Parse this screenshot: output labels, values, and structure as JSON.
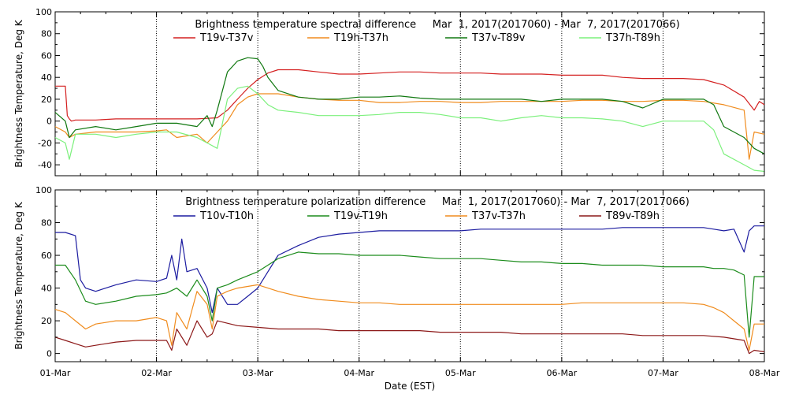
{
  "xlabel": "Date (EST)",
  "x_ticks": [
    "01-Mar",
    "02-Mar",
    "03-Mar",
    "04-Mar",
    "05-Mar",
    "06-Mar",
    "07-Mar",
    "08-Mar"
  ],
  "chart_data": [
    {
      "type": "line",
      "title": "Brightness temperature spectral difference     Mar  1, 2017(2017060) - Mar  7, 2017(2017066)",
      "xlabel": "",
      "ylabel": "Brightness Temperature, Deg K",
      "xlim": [
        0,
        7
      ],
      "ylim": [
        -50,
        100
      ],
      "yticks": [
        "-40",
        "-20",
        "0",
        "20",
        "40",
        "60",
        "80",
        "100"
      ],
      "ytick_values": [
        -40,
        -20,
        0,
        20,
        40,
        60,
        80,
        100
      ],
      "grid": "dotted vertical lines at day boundaries",
      "legend": "top",
      "series": [
        {
          "name": "T19v-T37v",
          "color": "#d42020",
          "x": [
            0,
            0.1,
            0.12,
            0.14,
            0.16,
            0.2,
            0.4,
            0.6,
            0.8,
            1,
            1.2,
            1.4,
            1.6,
            1.7,
            1.8,
            1.9,
            2,
            2.1,
            2.2,
            2.4,
            2.6,
            2.8,
            3,
            3.2,
            3.4,
            3.6,
            3.8,
            4,
            4.2,
            4.4,
            4.6,
            4.8,
            5,
            5.2,
            5.4,
            5.6,
            5.8,
            6,
            6.2,
            6.4,
            6.6,
            6.8,
            6.9,
            6.95,
            7
          ],
          "y": [
            32,
            32,
            5,
            2,
            0,
            1,
            1,
            2,
            2,
            2,
            2,
            2,
            3,
            10,
            20,
            30,
            38,
            44,
            47,
            47,
            45,
            43,
            43,
            44,
            45,
            45,
            44,
            44,
            44,
            43,
            43,
            43,
            42,
            42,
            42,
            40,
            39,
            39,
            39,
            38,
            33,
            22,
            10,
            18,
            15
          ]
        },
        {
          "name": "T19h-T37h",
          "color": "#f08c1e",
          "x": [
            0,
            0.1,
            0.14,
            0.2,
            0.4,
            0.6,
            0.8,
            1,
            1.1,
            1.2,
            1.4,
            1.5,
            1.6,
            1.7,
            1.8,
            1.9,
            2,
            2.2,
            2.4,
            2.6,
            2.8,
            3,
            3.2,
            3.4,
            3.6,
            3.8,
            4,
            4.2,
            4.4,
            4.6,
            4.8,
            5,
            5.2,
            5.4,
            5.6,
            5.8,
            6,
            6.2,
            6.4,
            6.6,
            6.8,
            6.85,
            6.9,
            7
          ],
          "y": [
            -5,
            -10,
            -15,
            -12,
            -10,
            -10,
            -10,
            -9,
            -8,
            -15,
            -12,
            -20,
            -10,
            0,
            15,
            22,
            25,
            25,
            22,
            20,
            19,
            19,
            17,
            17,
            18,
            18,
            17,
            17,
            18,
            18,
            18,
            18,
            19,
            19,
            18,
            18,
            19,
            19,
            18,
            15,
            10,
            -35,
            -10,
            -12
          ]
        },
        {
          "name": "T37v-T89v",
          "color": "#107810",
          "x": [
            0,
            0.1,
            0.14,
            0.2,
            0.4,
            0.6,
            0.8,
            1,
            1.2,
            1.4,
            1.5,
            1.55,
            1.6,
            1.7,
            1.8,
            1.9,
            2,
            2.05,
            2.1,
            2.2,
            2.4,
            2.6,
            2.8,
            3,
            3.2,
            3.4,
            3.6,
            3.8,
            4,
            4.2,
            4.4,
            4.6,
            4.8,
            5,
            5.2,
            5.4,
            5.6,
            5.8,
            6,
            6.2,
            6.4,
            6.5,
            6.6,
            6.8,
            6.9,
            7
          ],
          "y": [
            8,
            0,
            -15,
            -8,
            -5,
            -8,
            -5,
            -2,
            -2,
            -5,
            5,
            -5,
            10,
            45,
            55,
            58,
            57,
            50,
            40,
            28,
            22,
            20,
            20,
            22,
            22,
            23,
            21,
            20,
            20,
            20,
            20,
            20,
            18,
            20,
            20,
            20,
            18,
            12,
            20,
            20,
            20,
            15,
            -5,
            -15,
            -25,
            -30
          ]
        },
        {
          "name": "T37h-T89h",
          "color": "#7cf07c",
          "x": [
            0,
            0.1,
            0.14,
            0.2,
            0.4,
            0.6,
            0.8,
            1,
            1.2,
            1.4,
            1.5,
            1.6,
            1.7,
            1.8,
            1.9,
            2,
            2.1,
            2.2,
            2.4,
            2.6,
            2.8,
            3,
            3.2,
            3.4,
            3.6,
            3.8,
            4,
            4.2,
            4.4,
            4.6,
            4.8,
            5,
            5.2,
            5.4,
            5.6,
            5.8,
            6,
            6.2,
            6.4,
            6.5,
            6.6,
            6.8,
            6.9,
            7
          ],
          "y": [
            -15,
            -20,
            -35,
            -12,
            -12,
            -15,
            -12,
            -10,
            -10,
            -15,
            -20,
            -25,
            20,
            30,
            32,
            25,
            15,
            10,
            8,
            5,
            5,
            5,
            6,
            8,
            8,
            6,
            3,
            3,
            0,
            3,
            5,
            3,
            3,
            2,
            0,
            -5,
            0,
            0,
            0,
            -8,
            -30,
            -40,
            -45,
            -46
          ]
        }
      ]
    },
    {
      "type": "line",
      "title": "Brightness temperature polarization difference     Mar  1, 2017(2017060) - Mar  7, 2017(2017066)",
      "xlabel": "Date (EST)",
      "ylabel": "Brightness Temperature, Deg K",
      "xlim": [
        0,
        7
      ],
      "ylim": [
        -5,
        100
      ],
      "yticks": [
        "0",
        "20",
        "40",
        "60",
        "80",
        "100"
      ],
      "ytick_values": [
        0,
        20,
        40,
        60,
        80,
        100
      ],
      "grid": "dotted vertical lines at day boundaries",
      "legend": "top",
      "series": [
        {
          "name": "T10v-T10h",
          "color": "#1c1ca0",
          "x": [
            0,
            0.1,
            0.2,
            0.25,
            0.3,
            0.4,
            0.6,
            0.8,
            1,
            1.1,
            1.15,
            1.2,
            1.25,
            1.3,
            1.4,
            1.5,
            1.55,
            1.6,
            1.7,
            1.8,
            1.9,
            2,
            2.1,
            2.2,
            2.4,
            2.6,
            2.8,
            3,
            3.2,
            3.4,
            3.6,
            3.8,
            4,
            4.2,
            4.4,
            4.6,
            4.8,
            5,
            5.2,
            5.4,
            5.6,
            5.8,
            6,
            6.2,
            6.4,
            6.5,
            6.6,
            6.7,
            6.8,
            6.85,
            6.9,
            7
          ],
          "y": [
            74,
            74,
            72,
            45,
            40,
            38,
            42,
            45,
            44,
            46,
            60,
            45,
            70,
            50,
            52,
            40,
            25,
            40,
            30,
            30,
            35,
            40,
            50,
            60,
            66,
            71,
            73,
            74,
            75,
            75,
            75,
            75,
            75,
            76,
            76,
            76,
            76,
            76,
            76,
            76,
            77,
            77,
            77,
            77,
            77,
            76,
            75,
            76,
            62,
            75,
            78,
            78
          ]
        },
        {
          "name": "T19v-T19h",
          "color": "#1c8c1c",
          "x": [
            0,
            0.1,
            0.2,
            0.3,
            0.4,
            0.6,
            0.8,
            1,
            1.1,
            1.2,
            1.3,
            1.4,
            1.5,
            1.55,
            1.6,
            1.7,
            1.8,
            2,
            2.2,
            2.4,
            2.6,
            2.8,
            3,
            3.2,
            3.4,
            3.6,
            3.8,
            4,
            4.2,
            4.4,
            4.6,
            4.8,
            5,
            5.2,
            5.4,
            5.6,
            5.8,
            6,
            6.2,
            6.4,
            6.5,
            6.6,
            6.7,
            6.8,
            6.85,
            6.9,
            7
          ],
          "y": [
            54,
            54,
            45,
            32,
            30,
            32,
            35,
            36,
            37,
            40,
            35,
            45,
            35,
            20,
            40,
            42,
            45,
            50,
            58,
            62,
            61,
            61,
            60,
            60,
            60,
            59,
            58,
            58,
            58,
            57,
            56,
            56,
            55,
            55,
            54,
            54,
            54,
            53,
            53,
            53,
            52,
            52,
            51,
            48,
            10,
            47,
            47
          ]
        },
        {
          "name": "T37v-T37h",
          "color": "#f08c1e",
          "x": [
            0,
            0.1,
            0.2,
            0.3,
            0.4,
            0.6,
            0.8,
            1,
            1.1,
            1.15,
            1.2,
            1.3,
            1.4,
            1.5,
            1.55,
            1.6,
            1.7,
            1.8,
            2,
            2.2,
            2.4,
            2.6,
            2.8,
            3,
            3.2,
            3.4,
            3.6,
            3.8,
            4,
            4.2,
            4.4,
            4.6,
            4.8,
            5,
            5.2,
            5.4,
            5.6,
            5.8,
            6,
            6.2,
            6.4,
            6.5,
            6.6,
            6.7,
            6.8,
            6.85,
            6.9,
            7
          ],
          "y": [
            27,
            25,
            20,
            15,
            18,
            20,
            20,
            22,
            20,
            5,
            25,
            15,
            38,
            30,
            15,
            35,
            38,
            40,
            42,
            38,
            35,
            33,
            32,
            31,
            31,
            30,
            30,
            30,
            30,
            30,
            30,
            30,
            30,
            30,
            31,
            31,
            31,
            31,
            31,
            31,
            30,
            28,
            25,
            20,
            15,
            2,
            18,
            18
          ]
        },
        {
          "name": "T89v-T89h",
          "color": "#8c1818",
          "x": [
            0,
            0.1,
            0.2,
            0.3,
            0.4,
            0.6,
            0.8,
            1,
            1.1,
            1.15,
            1.2,
            1.3,
            1.4,
            1.5,
            1.55,
            1.6,
            1.8,
            2,
            2.2,
            2.4,
            2.6,
            2.8,
            3,
            3.2,
            3.4,
            3.6,
            3.8,
            4,
            4.2,
            4.4,
            4.6,
            4.8,
            5,
            5.2,
            5.4,
            5.6,
            5.8,
            6,
            6.2,
            6.4,
            6.6,
            6.8,
            6.85,
            6.9,
            7
          ],
          "y": [
            10,
            8,
            6,
            4,
            5,
            7,
            8,
            8,
            8,
            2,
            15,
            5,
            20,
            10,
            12,
            20,
            17,
            16,
            15,
            15,
            15,
            14,
            14,
            14,
            14,
            14,
            13,
            13,
            13,
            13,
            12,
            12,
            12,
            12,
            12,
            12,
            11,
            11,
            11,
            11,
            10,
            8,
            0,
            2,
            1
          ]
        }
      ]
    }
  ]
}
